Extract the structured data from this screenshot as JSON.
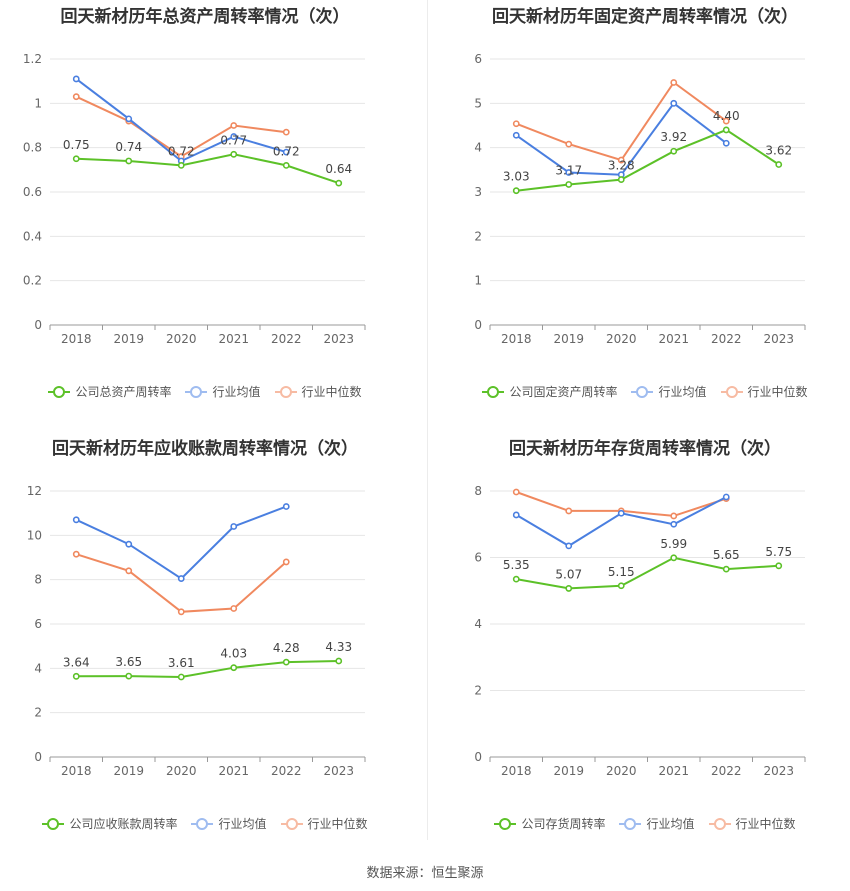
{
  "source": "数据来源：恒生聚源",
  "colors": {
    "company": "#5cc128",
    "avg": "#4a7fe0",
    "median": "#f0895f"
  },
  "chart_data": [
    {
      "type": "line",
      "title": "回天新材历年总资产周转率情况（次）",
      "x": [
        "2018",
        "2019",
        "2020",
        "2021",
        "2022",
        "2023"
      ],
      "ylim": [
        0,
        1.2
      ],
      "yticks": [
        "0",
        "0.2",
        "0.4",
        "0.6",
        "0.8",
        "1",
        "1.2"
      ],
      "grid": true,
      "legend_position": "bottom",
      "series": [
        {
          "name": "公司总资产周转率",
          "values": [
            0.75,
            0.74,
            0.72,
            0.77,
            0.72,
            0.64
          ],
          "labels": [
            "0.75",
            "0.74",
            "0.72",
            "0.77",
            "0.72",
            "0.64"
          ]
        },
        {
          "name": "行业均值",
          "values": [
            1.11,
            0.93,
            0.74,
            0.85,
            0.78,
            null
          ]
        },
        {
          "name": "行业中位数",
          "values": [
            1.03,
            0.92,
            0.76,
            0.9,
            0.87,
            null
          ]
        }
      ]
    },
    {
      "type": "line",
      "title": "回天新材历年固定资产周转率情况（次）",
      "x": [
        "2018",
        "2019",
        "2020",
        "2021",
        "2022",
        "2023"
      ],
      "ylim": [
        0,
        6
      ],
      "yticks": [
        "0",
        "1",
        "2",
        "3",
        "4",
        "5",
        "6"
      ],
      "grid": true,
      "legend_position": "bottom",
      "series": [
        {
          "name": "公司固定资产周转率",
          "values": [
            3.03,
            3.17,
            3.28,
            3.92,
            4.4,
            3.62
          ],
          "labels": [
            "3.03",
            "3.17",
            "3.28",
            "3.92",
            "4.40",
            "3.62"
          ]
        },
        {
          "name": "行业均值",
          "values": [
            4.28,
            3.44,
            3.39,
            5.0,
            4.1,
            null
          ]
        },
        {
          "name": "行业中位数",
          "values": [
            4.54,
            4.08,
            3.72,
            5.47,
            4.6,
            null
          ]
        }
      ]
    },
    {
      "type": "line",
      "title": "回天新材历年应收账款周转率情况（次）",
      "x": [
        "2018",
        "2019",
        "2020",
        "2021",
        "2022",
        "2023"
      ],
      "ylim": [
        0,
        12
      ],
      "yticks": [
        "0",
        "2",
        "4",
        "6",
        "8",
        "10",
        "12"
      ],
      "grid": true,
      "legend_position": "bottom",
      "series": [
        {
          "name": "公司应收账款周转率",
          "values": [
            3.64,
            3.65,
            3.61,
            4.03,
            4.28,
            4.33
          ],
          "labels": [
            "3.64",
            "3.65",
            "3.61",
            "4.03",
            "4.28",
            "4.33"
          ]
        },
        {
          "name": "行业均值",
          "values": [
            10.7,
            9.6,
            8.05,
            10.4,
            11.3,
            null
          ]
        },
        {
          "name": "行业中位数",
          "values": [
            9.15,
            8.4,
            6.55,
            6.7,
            8.8,
            null
          ]
        }
      ]
    },
    {
      "type": "line",
      "title": "回天新材历年存货周转率情况（次）",
      "x": [
        "2018",
        "2019",
        "2020",
        "2021",
        "2022",
        "2023"
      ],
      "ylim": [
        0,
        8
      ],
      "yticks": [
        "0",
        "2",
        "4",
        "6",
        "8"
      ],
      "grid": true,
      "legend_position": "bottom",
      "series": [
        {
          "name": "公司存货周转率",
          "values": [
            5.35,
            5.07,
            5.15,
            5.99,
            5.65,
            5.75
          ],
          "labels": [
            "5.35",
            "5.07",
            "5.15",
            "5.99",
            "5.65",
            "5.75"
          ]
        },
        {
          "name": "行业均值",
          "values": [
            7.28,
            6.35,
            7.33,
            7.0,
            7.82,
            null
          ]
        },
        {
          "name": "行业中位数",
          "values": [
            7.97,
            7.4,
            7.4,
            7.25,
            7.77,
            null
          ]
        }
      ]
    }
  ]
}
